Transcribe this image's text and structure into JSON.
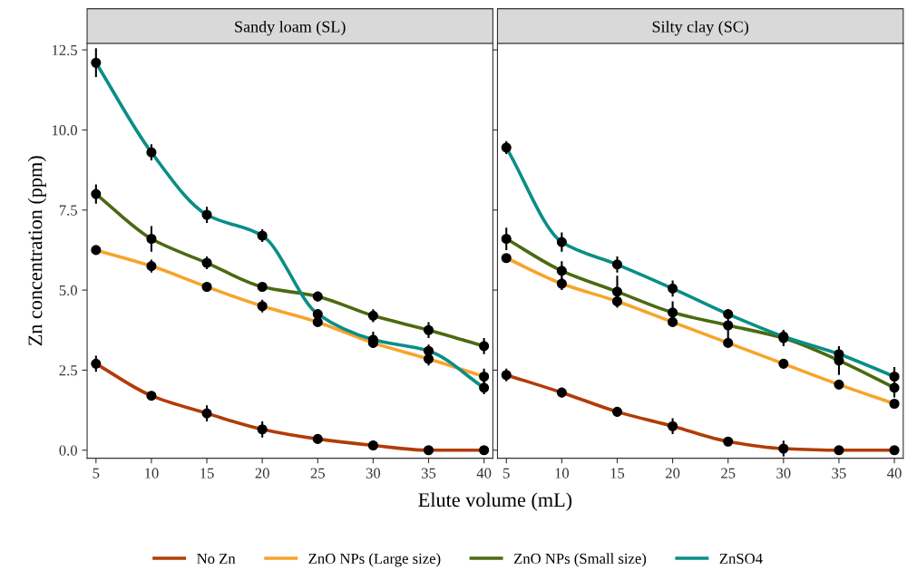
{
  "chart_data": [
    {
      "type": "line",
      "title": "Sandy loam (SL)",
      "xlabel": "Elute volume (mL)",
      "ylabel": "Zn concentration (ppm)",
      "x": [
        5,
        10,
        15,
        20,
        25,
        30,
        35,
        40
      ],
      "xlim": [
        4.2,
        40.8
      ],
      "ylim": [
        -0.25,
        12.7
      ],
      "xticks": [
        5,
        10,
        15,
        20,
        25,
        30,
        35,
        40
      ],
      "yticks": [
        {
          "value": 0,
          "label": "0.0"
        },
        {
          "value": 2.5,
          "label": "2.5"
        },
        {
          "value": 5,
          "label": "5.0"
        },
        {
          "value": 7.5,
          "label": "7.5"
        },
        {
          "value": 10,
          "label": "10.0"
        },
        {
          "value": 12.5,
          "label": "12.5"
        }
      ],
      "grid": false,
      "legend": "bottom",
      "marker": "circle",
      "line_style": "solid",
      "series": [
        {
          "name": "No Zn",
          "color": "#b23c06",
          "values": [
            2.7,
            1.7,
            1.15,
            0.65,
            0.35,
            0.15,
            0,
            0
          ],
          "errors": [
            0.25,
            0.1,
            0.25,
            0.25,
            0.1,
            0.1,
            0.05,
            0.05
          ]
        },
        {
          "name": "ZnO NPs (Large size)",
          "color": "#f7a42a",
          "values": [
            6.25,
            5.75,
            5.1,
            4.5,
            4.0,
            3.35,
            2.85,
            2.3
          ],
          "errors": [
            0.1,
            0.2,
            0.15,
            0.2,
            0.1,
            0.15,
            0.2,
            0.25
          ]
        },
        {
          "name": "ZnO NPs (Small size)",
          "color": "#4b6a10",
          "values": [
            8.0,
            6.6,
            5.85,
            5.1,
            4.8,
            4.2,
            3.75,
            3.25
          ],
          "errors": [
            0.3,
            0.4,
            0.2,
            0.1,
            0.15,
            0.2,
            0.25,
            0.25
          ]
        },
        {
          "name": "ZnSO4",
          "color": "#0a8e86",
          "values": [
            12.1,
            9.3,
            7.35,
            6.7,
            4.25,
            3.45,
            3.1,
            1.95
          ],
          "errors": [
            0.45,
            0.25,
            0.25,
            0.2,
            0.15,
            0.25,
            0.2,
            0.2
          ]
        }
      ]
    },
    {
      "type": "line",
      "title": "Silty clay (SC)",
      "x": [
        5,
        10,
        15,
        20,
        25,
        30,
        35,
        40
      ],
      "xlim": [
        4.2,
        40.8
      ],
      "ylim": [
        -0.25,
        12.7
      ],
      "xticks": [
        5,
        10,
        15,
        20,
        25,
        30,
        35,
        40
      ],
      "tick_labels": "x",
      "grid": false,
      "marker": "circle",
      "line_style": "solid",
      "series": [
        {
          "name": "No Zn",
          "color": "#b23c06",
          "values": [
            2.35,
            1.8,
            1.2,
            0.75,
            0.27,
            0.05,
            0,
            0
          ],
          "errors": [
            0.2,
            0.15,
            0.15,
            0.25,
            0.15,
            0.25,
            0.05,
            0.05
          ]
        },
        {
          "name": "ZnO NPs (Large size)",
          "color": "#f7a42a",
          "values": [
            6.0,
            5.2,
            4.65,
            4.0,
            3.35,
            2.7,
            2.05,
            1.45
          ],
          "errors": [
            0.1,
            0.2,
            0.15,
            0.1,
            0.1,
            0.1,
            0.1,
            0.1
          ]
        },
        {
          "name": "ZnO NPs (Small size)",
          "color": "#4b6a10",
          "values": [
            6.6,
            5.6,
            4.95,
            4.3,
            3.9,
            3.5,
            2.8,
            1.95
          ],
          "errors": [
            0.35,
            0.3,
            0.5,
            0.35,
            0.5,
            0.25,
            0.45,
            0.3
          ]
        },
        {
          "name": "ZnSO4",
          "color": "#0a8e86",
          "values": [
            9.45,
            6.5,
            5.8,
            5.05,
            4.25,
            3.55,
            3.0,
            2.3
          ],
          "errors": [
            0.2,
            0.3,
            0.25,
            0.25,
            0.1,
            0.2,
            0.15,
            0.3
          ]
        }
      ]
    }
  ]
}
